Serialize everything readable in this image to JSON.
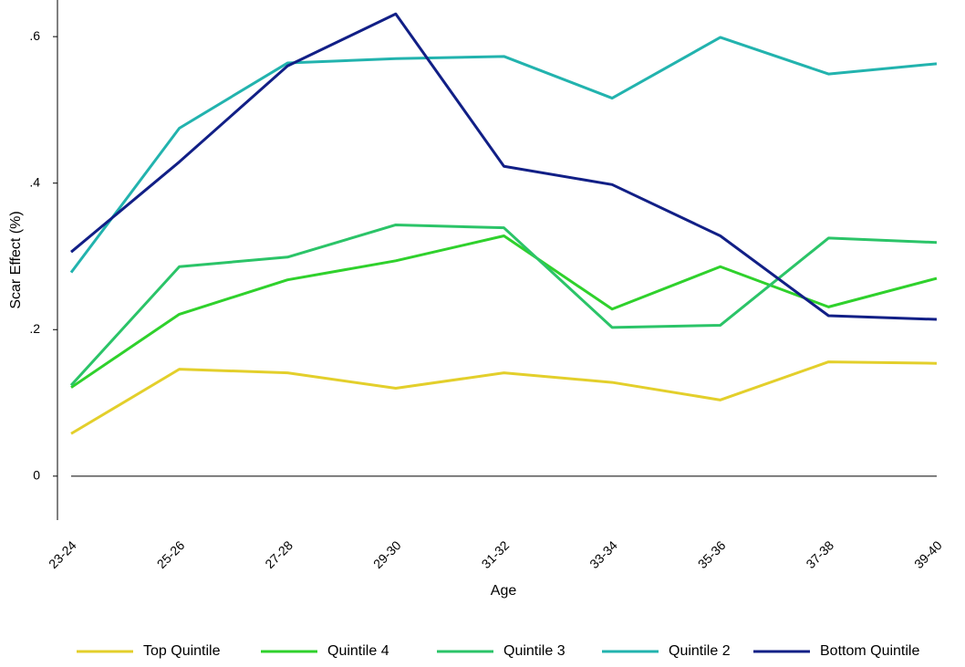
{
  "chart_data": {
    "type": "line",
    "x_label": "Age",
    "y_label": "Scar Effect (%)",
    "categories": [
      "23-24",
      "25-26",
      "27-28",
      "29-30",
      "31-32",
      "33-34",
      "35-36",
      "37-38",
      "39-40"
    ],
    "ylim": [
      -0.06,
      0.65
    ],
    "yticks": [
      0,
      {
        "value": 0.2,
        "label": ".2"
      },
      {
        "value": 0.4,
        "label": ".4"
      },
      {
        "value": 0.6,
        "label": ".6"
      }
    ],
    "grid": false,
    "legend": "bottom",
    "series": [
      {
        "name": "Top Quintile",
        "color": "#e3cf2b",
        "values": [
          0.058,
          0.146,
          0.141,
          0.12,
          0.141,
          0.128,
          0.104,
          0.156,
          0.154
        ]
      },
      {
        "name": "Quintile 4",
        "color": "#2fd12c",
        "values": [
          0.121,
          0.221,
          0.268,
          0.294,
          0.328,
          0.228,
          0.286,
          0.231,
          0.27
        ]
      },
      {
        "name": "Quintile 3",
        "color": "#2bc468",
        "values": [
          0.124,
          0.286,
          0.299,
          0.343,
          0.339,
          0.203,
          0.206,
          0.325,
          0.319
        ]
      },
      {
        "name": "Quintile 2",
        "color": "#22b3ae",
        "values": [
          0.278,
          0.475,
          0.564,
          0.57,
          0.573,
          0.516,
          0.599,
          0.549,
          0.563
        ]
      },
      {
        "name": "Bottom Quintile",
        "color": "#111f86",
        "values": [
          0.306,
          0.429,
          0.56,
          0.631,
          0.423,
          0.398,
          0.328,
          0.219,
          0.214
        ]
      }
    ]
  }
}
